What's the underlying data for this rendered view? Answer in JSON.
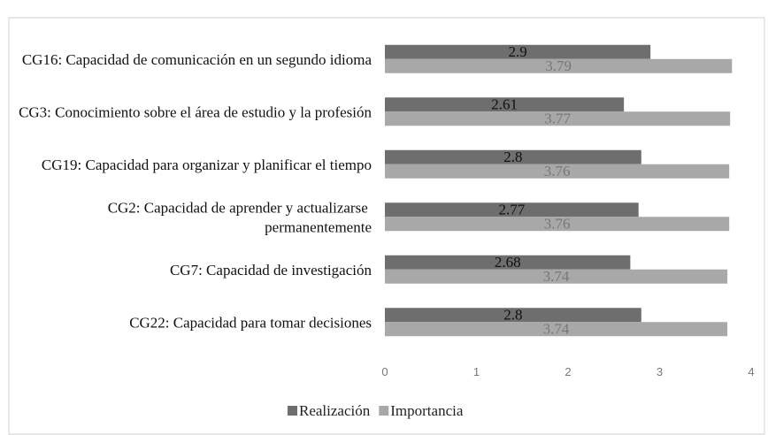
{
  "chart_data": {
    "type": "bar",
    "orientation": "horizontal",
    "categories": [
      "CG16: Capacidad de comunicación en un segundo idioma",
      "CG3: Conocimiento sobre el área de estudio y la profesión",
      "CG19: Capacidad para organizar y planificar el tiempo",
      "CG2: Capacidad de aprender y actualizarse permanentemente",
      "CG7: Capacidad de investigación",
      "CG22: Capacidad para tomar decisiones"
    ],
    "series": [
      {
        "name": "Realización",
        "color": "#6e6e6e",
        "values": [
          2.9,
          2.61,
          2.8,
          2.77,
          2.68,
          2.8
        ]
      },
      {
        "name": "Importancia",
        "color": "#a8a8a8",
        "values": [
          3.79,
          3.77,
          3.76,
          3.76,
          3.74,
          3.74
        ]
      }
    ],
    "xlim": [
      0,
      4
    ],
    "xticks": [
      0,
      1,
      2,
      3,
      4
    ],
    "legend": "bottom"
  }
}
